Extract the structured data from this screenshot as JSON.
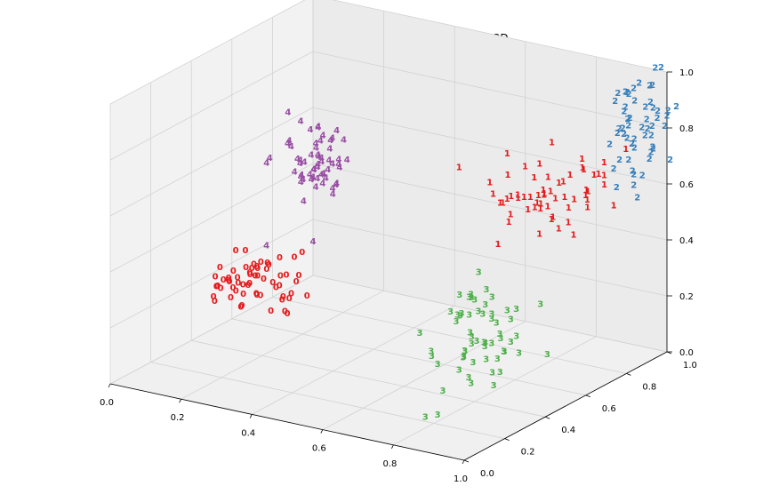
{
  "chart_data": {
    "type": "scatter",
    "title": "Linear Discriminant projection of the digits - 3D",
    "xlim": [
      0,
      1
    ],
    "ylim": [
      0,
      1
    ],
    "zlim": [
      0,
      1
    ],
    "x_ticks": [
      "0.0",
      "0.2",
      "0.4",
      "0.6",
      "0.8",
      "1.0"
    ],
    "y_ticks": [
      "0.0",
      "0.2",
      "0.4",
      "0.6",
      "0.8",
      "1.0"
    ],
    "z_ticks": [
      "0.0",
      "0.2",
      "0.4",
      "0.6",
      "0.8",
      "1.0"
    ],
    "grid": true,
    "colors": {
      "0": "#e41a1c",
      "1": "#e41a1c",
      "2": "#377eb8",
      "3": "#4daf4a",
      "4": "#984ea3"
    },
    "clusters": [
      {
        "label": "0",
        "center": [
          0.35,
          0.12,
          0.4
        ],
        "spread": [
          0.06,
          0.07,
          0.06
        ],
        "count": 60
      },
      {
        "label": "4",
        "center": [
          0.26,
          0.55,
          0.65
        ],
        "spread": [
          0.05,
          0.06,
          0.07
        ],
        "count": 60
      },
      {
        "label": "1",
        "center": [
          0.78,
          0.78,
          0.58
        ],
        "spread": [
          0.08,
          0.09,
          0.06
        ],
        "count": 60
      },
      {
        "label": "2",
        "center": [
          0.97,
          0.94,
          0.8
        ],
        "spread": [
          0.04,
          0.05,
          0.09
        ],
        "count": 55
      },
      {
        "label": "3",
        "center": [
          0.78,
          0.45,
          0.18
        ],
        "spread": [
          0.05,
          0.08,
          0.1
        ],
        "count": 60
      }
    ]
  }
}
